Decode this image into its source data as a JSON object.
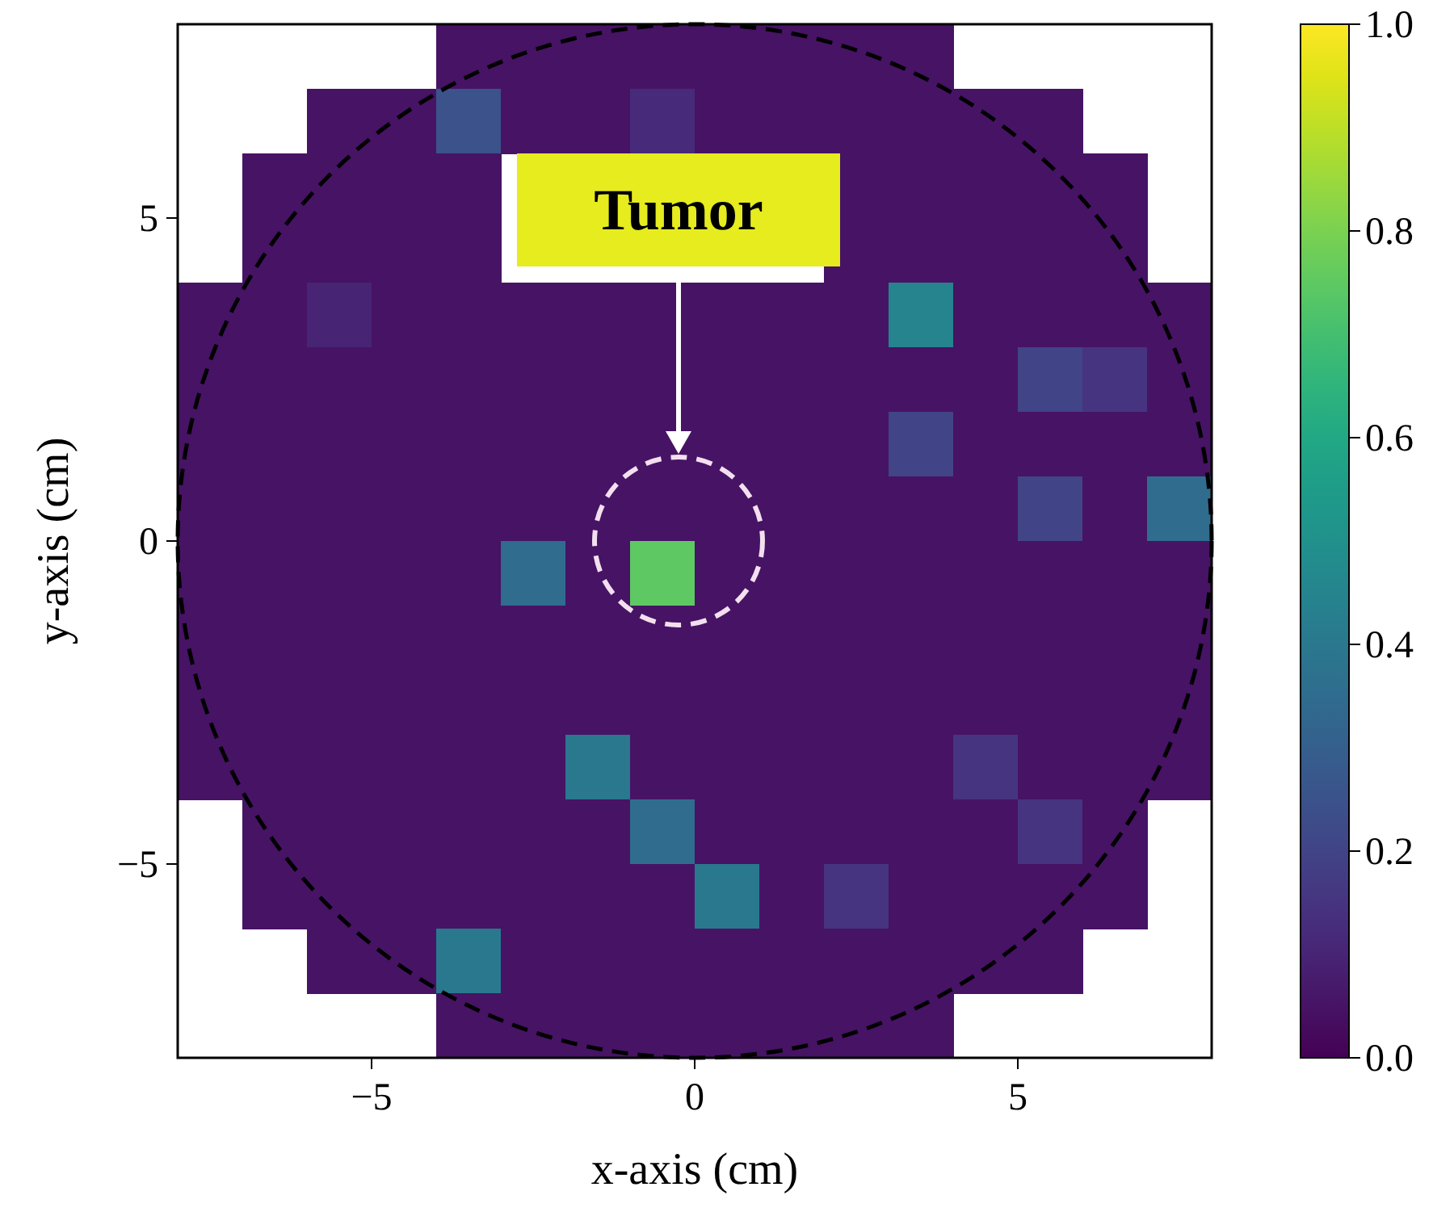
{
  "chart_data": {
    "type": "heatmap",
    "xlabel": "x-axis (cm)",
    "ylabel": "y-axis (cm)",
    "xlim": [
      -8,
      8
    ],
    "ylim": [
      -8,
      8
    ],
    "xticks": [
      {
        "value": -5,
        "label": "−5"
      },
      0,
      5
    ],
    "yticks": [
      {
        "value": -5,
        "label": "−5"
      },
      0,
      5
    ],
    "clim": [
      0,
      1
    ],
    "cticks": [
      {
        "value": 0,
        "label": "0.0"
      },
      {
        "value": 0.2,
        "label": "0.2"
      },
      {
        "value": 0.4,
        "label": "0.4"
      },
      {
        "value": 0.6,
        "label": "0.6"
      },
      {
        "value": 0.8,
        "label": "0.8"
      },
      {
        "value": 1,
        "label": "1.0"
      }
    ],
    "cells": [
      [
        null,
        null,
        null,
        null,
        0.05,
        0.05,
        0.05,
        0.05,
        0.05,
        0.05,
        0.05,
        0.05,
        null,
        null,
        null,
        null
      ],
      [
        null,
        null,
        0.05,
        0.05,
        0.25,
        0.05,
        0.05,
        0.12,
        0.05,
        0.05,
        0.05,
        0.05,
        0.05,
        0.05,
        null,
        null
      ],
      [
        null,
        0.05,
        0.05,
        0.05,
        0.05,
        null,
        null,
        null,
        null,
        null,
        0.05,
        0.05,
        0.05,
        0.05,
        0.05,
        null
      ],
      [
        null,
        0.05,
        0.05,
        0.05,
        0.05,
        null,
        null,
        null,
        null,
        null,
        0.05,
        0.05,
        0.05,
        0.05,
        0.05,
        null
      ],
      [
        0.05,
        0.05,
        0.1,
        0.05,
        0.05,
        0.05,
        0.05,
        0.05,
        0.05,
        0.05,
        0.05,
        0.45,
        0.05,
        0.05,
        0.05,
        0.05
      ],
      [
        0.05,
        0.05,
        0.05,
        0.05,
        0.05,
        0.05,
        0.05,
        0.05,
        0.05,
        0.05,
        0.05,
        0.05,
        0.05,
        0.2,
        0.15,
        0.05
      ],
      [
        0.05,
        0.05,
        0.05,
        0.05,
        0.05,
        0.05,
        0.05,
        0.05,
        0.05,
        0.05,
        0.05,
        0.2,
        0.05,
        0.05,
        0.05,
        0.05
      ],
      [
        0.05,
        0.05,
        0.05,
        0.05,
        0.05,
        0.05,
        0.05,
        0.05,
        0.05,
        0.05,
        0.05,
        0.05,
        0.05,
        0.2,
        0.05,
        0.35
      ],
      [
        0.05,
        0.05,
        0.05,
        0.05,
        0.05,
        0.35,
        0.05,
        0.75,
        0.05,
        0.05,
        0.05,
        0.05,
        0.05,
        0.05,
        0.05,
        0.05
      ],
      [
        0.05,
        0.05,
        0.05,
        0.05,
        0.05,
        0.05,
        0.05,
        0.05,
        0.05,
        0.05,
        0.05,
        0.05,
        0.05,
        0.05,
        0.05,
        0.05
      ],
      [
        0.05,
        0.05,
        0.05,
        0.05,
        0.05,
        0.05,
        0.05,
        0.05,
        0.05,
        0.05,
        0.05,
        0.05,
        0.05,
        0.05,
        0.05,
        0.05
      ],
      [
        0.05,
        0.05,
        0.05,
        0.05,
        0.05,
        0.05,
        0.4,
        0.05,
        0.05,
        0.05,
        0.05,
        0.05,
        0.15,
        0.05,
        0.05,
        0.05
      ],
      [
        null,
        0.05,
        0.05,
        0.05,
        0.05,
        0.05,
        0.05,
        0.35,
        0.05,
        0.05,
        0.05,
        0.05,
        0.05,
        0.15,
        0.05,
        null
      ],
      [
        null,
        0.05,
        0.05,
        0.05,
        0.05,
        0.05,
        0.05,
        0.05,
        0.4,
        0.05,
        0.15,
        0.05,
        0.05,
        0.05,
        0.05,
        null
      ],
      [
        null,
        null,
        0.05,
        0.05,
        0.4,
        0.05,
        0.05,
        0.05,
        0.05,
        0.05,
        0.05,
        0.05,
        0.05,
        0.05,
        null,
        null
      ],
      [
        null,
        null,
        null,
        null,
        0.05,
        0.05,
        0.05,
        0.05,
        0.05,
        0.05,
        0.05,
        0.05,
        null,
        null,
        null,
        null
      ]
    ],
    "annotations": [
      "Tumor"
    ]
  }
}
